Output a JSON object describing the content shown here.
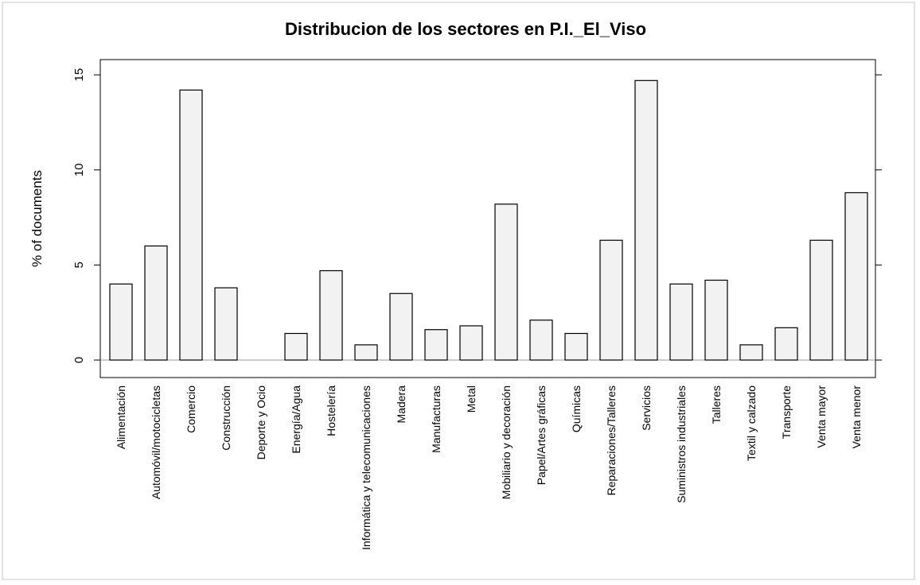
{
  "chart_data": {
    "type": "bar",
    "title": "Distribucion de los sectores en P.I._El_Viso",
    "y_label": "% of documents",
    "categories": [
      "Alimentación",
      "Automóvil/motocicletas",
      "Comercio",
      "Construcción",
      "Deporte y Ocio",
      "Energía/Agua",
      "Hostelería",
      "Informática y telecomunicaciones",
      "Madera",
      "Manufacturas",
      "Metal",
      "Mobiliario y decoración",
      "Papel/Artes gráficas",
      "Químicas",
      "Reparaciones/Talleres",
      "Servicios",
      "Suministros industriales",
      "Talleres",
      "Textil y calzado",
      "Transporte",
      "Venta mayor",
      "Venta menor"
    ],
    "values": [
      4.0,
      6.0,
      14.2,
      3.8,
      0,
      1.4,
      4.7,
      0.8,
      3.5,
      1.6,
      1.8,
      8.2,
      2.1,
      1.4,
      6.3,
      14.7,
      4.0,
      4.2,
      0.8,
      1.7,
      6.3,
      8.8
    ],
    "color": "#f2f2f2",
    "ylim": [
      -0.92,
      15.8
    ],
    "yticks": [
      0,
      5,
      10,
      15
    ]
  }
}
